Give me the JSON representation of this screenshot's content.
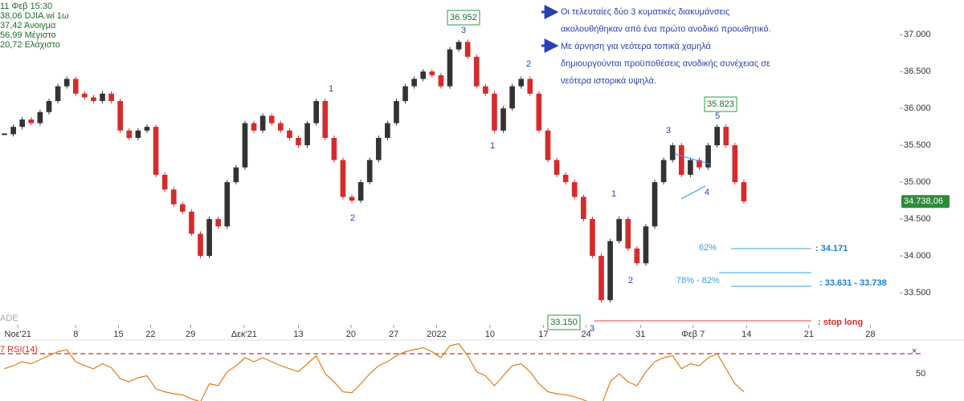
{
  "chart_data": {
    "type": "candlestick",
    "legend_lines": [
      "11 Φεβ 15:30",
      "38,06 DJIA.wi 1ω",
      "37,42 Άνοιγμα",
      "56,99 Μέγιστο",
      "20,72 Ελάχιστο"
    ],
    "up_color": "#333333",
    "down_color": "#d62b2b",
    "values": [
      35650,
      35750,
      35850,
      35800,
      35950,
      36100,
      36300,
      36400,
      36200,
      36150,
      36100,
      36200,
      36100,
      35700,
      35600,
      35700,
      35750,
      35100,
      34900,
      34700,
      34600,
      34300,
      34000,
      34500,
      34400,
      35000,
      35200,
      35800,
      35700,
      35900,
      35800,
      35700,
      35600,
      35500,
      35800,
      36100,
      35600,
      35300,
      34800,
      34750,
      35000,
      35300,
      35600,
      35800,
      36100,
      36300,
      36400,
      36500,
      36450,
      36300,
      36800,
      36900,
      36700,
      36300,
      36200,
      35700,
      36000,
      36300,
      36400,
      36200,
      35700,
      35300,
      35100,
      35000,
      34800,
      34500,
      34000,
      33400,
      34200,
      34500,
      34100,
      33900,
      34400,
      35000,
      35300,
      35500,
      35100,
      35300,
      35200,
      35500,
      35750,
      35500,
      35000,
      34738.06
    ],
    "last_price_label": "34.738,06",
    "xlim": [
      -0.5,
      100.5
    ],
    "xticks": [
      {
        "value": 1.5,
        "label": "Νοε'21"
      },
      {
        "value": 8,
        "label": "8"
      },
      {
        "value": 12.8,
        "label": "15"
      },
      {
        "value": 16.4,
        "label": "22"
      },
      {
        "value": 20.9,
        "label": "29"
      },
      {
        "value": 26.9,
        "label": "Δεκ'21"
      },
      {
        "value": 33,
        "label": "13"
      },
      {
        "value": 38.9,
        "label": "20"
      },
      {
        "value": 43.7,
        "label": "27"
      },
      {
        "value": 48.5,
        "label": "2022"
      },
      {
        "value": 54.5,
        "label": "10"
      },
      {
        "value": 60.5,
        "label": "17"
      },
      {
        "value": 65.3,
        "label": "24"
      },
      {
        "value": 71.4,
        "label": "31"
      },
      {
        "value": 77.3,
        "label": "Φεβ 7"
      },
      {
        "value": 83.3,
        "label": "14"
      },
      {
        "value": 90.3,
        "label": "21"
      },
      {
        "value": 97.2,
        "label": "28"
      }
    ],
    "ylim": [
      33120,
      37470
    ],
    "yticks": [
      {
        "value": 37000,
        "label": "37.000"
      },
      {
        "value": 36500,
        "label": "36.500"
      },
      {
        "value": 36000,
        "label": "36.000"
      },
      {
        "value": 35500,
        "label": "35.500"
      },
      {
        "value": 35000,
        "label": "35.000"
      },
      {
        "value": 34500,
        "label": "34.500"
      },
      {
        "value": 34000,
        "label": "34.000"
      },
      {
        "value": 33500,
        "label": "33.500"
      }
    ],
    "rsi": {
      "label": "7 RSI(14)",
      "color": "#e07b1a",
      "values": [
        55,
        58,
        62,
        60,
        64,
        68,
        72,
        74,
        62,
        58,
        55,
        60,
        56,
        45,
        42,
        46,
        48,
        35,
        32,
        30,
        29,
        25,
        22,
        40,
        38,
        52,
        58,
        66,
        62,
        66,
        62,
        58,
        55,
        52,
        60,
        68,
        50,
        42,
        32,
        31,
        40,
        50,
        58,
        62,
        68,
        72,
        74,
        76,
        72,
        66,
        78,
        80,
        68,
        52,
        48,
        38,
        48,
        58,
        60,
        52,
        40,
        32,
        30,
        29,
        27,
        24,
        20,
        18,
        42,
        50,
        42,
        38,
        52,
        62,
        66,
        68,
        55,
        60,
        58,
        66,
        70,
        55,
        40,
        32
      ],
      "ylim": [
        22.8,
        82.8
      ],
      "yticks": [
        50
      ],
      "level": 70
    },
    "annotations": {
      "price_boxes": [
        "36.952",
        "35.823",
        "33.150"
      ],
      "waves": [
        "3",
        "2",
        "1",
        "1",
        "2",
        "3",
        "5",
        "4",
        "1",
        "2",
        "3"
      ],
      "comment": [
        "Οι τελευταίες δύο 3 κυματικές διακυμάνσεις",
        "ακολουθήθηκαν από ένα πρώτο ανοδικό προωθητικό.",
        "Με άρνηση για νεότερα τοπικά χαμηλά",
        "δημιουργούνται προϋποθέσεις ανοδικής συνέχειας σε",
        "νεότερα ιστορικά υψηλά."
      ],
      "fib": [
        "62%",
        ": 34.171",
        "78% - 82%",
        ": 33.631 - 33.738",
        ": stop long"
      ],
      "watermark": "ADE",
      "close_icon": "×"
    }
  }
}
